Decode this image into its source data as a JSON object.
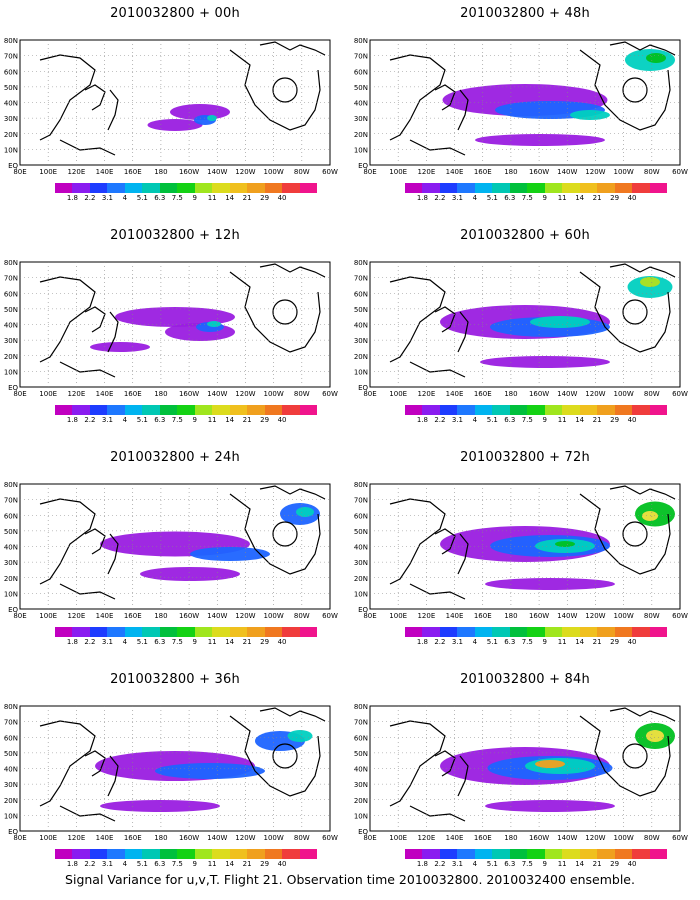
{
  "panels": [
    {
      "title": "2010032800 + 00h",
      "level": 0,
      "blobs": [
        [
          200,
          82,
          60,
          16,
          "#9a1ee0"
        ],
        [
          175,
          95,
          55,
          12,
          "#9a1ee0"
        ],
        [
          205,
          90,
          22,
          10,
          "#1e64ff"
        ],
        [
          212,
          88,
          10,
          6,
          "#00d0c0"
        ]
      ]
    },
    {
      "title": "2010032800 + 12h",
      "level": 1,
      "blobs": [
        [
          175,
          65,
          120,
          20,
          "#9a1ee0"
        ],
        [
          200,
          80,
          70,
          18,
          "#9a1ee0"
        ],
        [
          210,
          75,
          28,
          10,
          "#1e64ff"
        ],
        [
          214,
          72,
          14,
          6,
          "#00d0c0"
        ],
        [
          120,
          95,
          60,
          10,
          "#9a1ee0"
        ]
      ]
    },
    {
      "title": "2010032800 + 24h",
      "level": 2,
      "blobs": [
        [
          175,
          70,
          150,
          25,
          "#9a1ee0"
        ],
        [
          230,
          80,
          80,
          14,
          "#1e64ff"
        ],
        [
          300,
          40,
          40,
          22,
          "#1e64ff"
        ],
        [
          305,
          38,
          18,
          10,
          "#00d0c0"
        ],
        [
          190,
          100,
          100,
          14,
          "#9a1ee0"
        ]
      ]
    },
    {
      "title": "2010032800 + 36h",
      "level": 3,
      "blobs": [
        [
          175,
          70,
          160,
          30,
          "#9a1ee0"
        ],
        [
          210,
          75,
          110,
          16,
          "#1e64ff"
        ],
        [
          280,
          45,
          50,
          20,
          "#1e64ff"
        ],
        [
          300,
          40,
          25,
          12,
          "#00d0c0"
        ],
        [
          160,
          110,
          120,
          12,
          "#9a1ee0"
        ]
      ]
    },
    {
      "title": "2010032800 + 48h",
      "level": 3,
      "blobs": [
        [
          175,
          70,
          165,
          32,
          "#9a1ee0"
        ],
        [
          200,
          80,
          110,
          18,
          "#1e64ff"
        ],
        [
          240,
          85,
          40,
          10,
          "#00d0c0"
        ],
        [
          300,
          30,
          50,
          22,
          "#00d0c0"
        ],
        [
          306,
          28,
          20,
          10,
          "#00c020"
        ],
        [
          190,
          110,
          130,
          12,
          "#9a1ee0"
        ]
      ]
    },
    {
      "title": "2010032800 + 60h",
      "level": 4,
      "blobs": [
        [
          175,
          70,
          170,
          34,
          "#9a1ee0"
        ],
        [
          200,
          75,
          120,
          20,
          "#1e64ff"
        ],
        [
          210,
          70,
          60,
          12,
          "#00d0c0"
        ],
        [
          300,
          35,
          45,
          22,
          "#00d0c0"
        ],
        [
          300,
          30,
          20,
          10,
          "#b0e020"
        ],
        [
          195,
          110,
          130,
          12,
          "#9a1ee0"
        ]
      ]
    },
    {
      "title": "2010032800 + 72h",
      "level": 5,
      "blobs": [
        [
          175,
          70,
          170,
          36,
          "#9a1ee0"
        ],
        [
          200,
          72,
          120,
          22,
          "#1e64ff"
        ],
        [
          215,
          72,
          60,
          14,
          "#00d0c0"
        ],
        [
          215,
          70,
          20,
          6,
          "#00c020"
        ],
        [
          305,
          40,
          40,
          25,
          "#00c020"
        ],
        [
          300,
          42,
          16,
          10,
          "#f0e040"
        ],
        [
          200,
          110,
          130,
          12,
          "#9a1ee0"
        ]
      ]
    },
    {
      "title": "2010032800 + 84h",
      "level": 6,
      "blobs": [
        [
          175,
          70,
          170,
          38,
          "#9a1ee0"
        ],
        [
          200,
          72,
          125,
          24,
          "#1e64ff"
        ],
        [
          210,
          70,
          70,
          16,
          "#00d0c0"
        ],
        [
          200,
          68,
          30,
          8,
          "#f0a020"
        ],
        [
          305,
          40,
          40,
          26,
          "#00c020"
        ],
        [
          305,
          40,
          18,
          12,
          "#f0e040"
        ],
        [
          200,
          110,
          130,
          12,
          "#9a1ee0"
        ]
      ]
    }
  ],
  "map": {
    "lat_labels": [
      "80N",
      "70N",
      "60N",
      "50N",
      "40N",
      "30N",
      "20N",
      "10N",
      "EQ"
    ],
    "lon_labels": [
      "80E",
      "100E",
      "120E",
      "140E",
      "160E",
      "180",
      "160W",
      "140W",
      "120W",
      "100W",
      "80W",
      "60W"
    ]
  },
  "colorbar": {
    "colors": [
      "#c000c0",
      "#8a1cf0",
      "#1e3cff",
      "#1e78ff",
      "#00b4f0",
      "#00c8b4",
      "#00c03c",
      "#14d214",
      "#a0e61e",
      "#dcdc1e",
      "#f0c01e",
      "#f0a01e",
      "#f07820",
      "#f03c3c",
      "#f0148c"
    ],
    "labels": [
      "1.8",
      "2.2",
      "3.1",
      "4",
      "5.1",
      "6.3",
      "7.5",
      "9",
      "11",
      "14",
      "21",
      "29",
      "40"
    ]
  },
  "footer": "Signal Variance for u,v,T. Flight 21. Observation time 2010032800. 2010032400 ensemble."
}
